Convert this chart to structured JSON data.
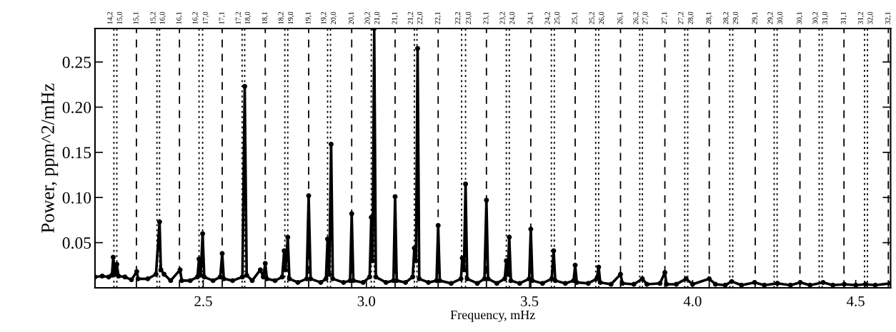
{
  "chart_data": {
    "type": "line",
    "xlabel": "Frequency, mHz",
    "ylabel": "Power, ppm^2/mHz",
    "xlim": [
      2.168,
      4.607
    ],
    "ylim": [
      0,
      0.287
    ],
    "xticks": [
      {
        "value": 2.5,
        "label": "2.5"
      },
      {
        "value": 3.0,
        "label": "3.0"
      },
      {
        "value": 3.5,
        "label": "3.5"
      },
      {
        "value": 4.0,
        "label": "4.0"
      },
      {
        "value": 4.5,
        "label": "4.5"
      }
    ],
    "yticks": [
      {
        "value": 0.05,
        "label": "0.05"
      },
      {
        "value": 0.1,
        "label": "0.10"
      },
      {
        "value": 0.15,
        "label": "0.15"
      },
      {
        "value": 0.2,
        "label": "0.20"
      },
      {
        "value": 0.25,
        "label": "0.25"
      }
    ],
    "grid": false,
    "legend": false,
    "marker": "circle",
    "line_style": "solid",
    "series": [
      {
        "color": "#000000",
        "x": [
          2.168,
          2.19,
          2.21,
          2.22,
          2.224,
          2.229,
          2.235,
          2.24,
          2.26,
          2.28,
          2.296,
          2.3,
          2.33,
          2.355,
          2.366,
          2.37,
          2.38,
          2.4,
          2.429,
          2.434,
          2.46,
          2.482,
          2.487,
          2.492,
          2.498,
          2.503,
          2.53,
          2.552,
          2.558,
          2.563,
          2.59,
          2.62,
          2.627,
          2.633,
          2.65,
          2.675,
          2.684,
          2.69,
          2.695,
          2.72,
          2.742,
          2.748,
          2.752,
          2.759,
          2.764,
          2.79,
          2.817,
          2.823,
          2.829,
          2.86,
          2.876,
          2.881,
          2.886,
          2.892,
          2.897,
          2.93,
          2.95,
          2.955,
          2.96,
          2.99,
          3.01,
          3.015,
          3.019,
          3.024,
          3.029,
          3.06,
          3.083,
          3.088,
          3.093,
          3.12,
          3.142,
          3.147,
          3.152,
          3.157,
          3.162,
          3.19,
          3.215,
          3.22,
          3.225,
          3.26,
          3.29,
          3.294,
          3.299,
          3.304,
          3.309,
          3.34,
          3.362,
          3.368,
          3.373,
          3.4,
          3.424,
          3.429,
          3.433,
          3.438,
          3.443,
          3.47,
          3.499,
          3.504,
          3.509,
          3.54,
          3.568,
          3.574,
          3.579,
          3.61,
          3.635,
          3.64,
          3.645,
          3.68,
          3.706,
          3.712,
          3.717,
          3.75,
          3.779,
          3.785,
          3.82,
          3.846,
          3.86,
          3.9,
          3.915,
          3.92,
          3.95,
          3.98,
          4.0,
          4.051,
          4.07,
          4.1,
          4.12,
          4.15,
          4.19,
          4.22,
          4.26,
          4.3,
          4.33,
          4.36,
          4.4,
          4.43,
          4.465,
          4.5,
          4.53,
          4.56,
          4.607
        ],
        "values": [
          0.012,
          0.013,
          0.012,
          0.014,
          0.034,
          0.015,
          0.026,
          0.013,
          0.012,
          0.009,
          0.018,
          0.01,
          0.01,
          0.015,
          0.073,
          0.02,
          0.015,
          0.008,
          0.02,
          0.008,
          0.008,
          0.012,
          0.032,
          0.014,
          0.06,
          0.012,
          0.008,
          0.012,
          0.038,
          0.01,
          0.008,
          0.012,
          0.223,
          0.014,
          0.008,
          0.02,
          0.012,
          0.027,
          0.01,
          0.008,
          0.012,
          0.041,
          0.02,
          0.056,
          0.01,
          0.006,
          0.01,
          0.102,
          0.01,
          0.006,
          0.01,
          0.054,
          0.015,
          0.159,
          0.01,
          0.006,
          0.008,
          0.082,
          0.008,
          0.006,
          0.012,
          0.078,
          0.03,
          0.287,
          0.012,
          0.006,
          0.008,
          0.101,
          0.008,
          0.006,
          0.012,
          0.044,
          0.03,
          0.265,
          0.01,
          0.006,
          0.008,
          0.069,
          0.008,
          0.005,
          0.01,
          0.033,
          0.02,
          0.115,
          0.01,
          0.005,
          0.01,
          0.097,
          0.01,
          0.005,
          0.01,
          0.03,
          0.015,
          0.056,
          0.008,
          0.005,
          0.01,
          0.065,
          0.008,
          0.005,
          0.01,
          0.041,
          0.008,
          0.005,
          0.008,
          0.025,
          0.006,
          0.005,
          0.01,
          0.023,
          0.006,
          0.004,
          0.015,
          0.005,
          0.004,
          0.01,
          0.004,
          0.005,
          0.017,
          0.004,
          0.004,
          0.01,
          0.004,
          0.01,
          0.004,
          0.003,
          0.007,
          0.003,
          0.006,
          0.003,
          0.005,
          0.003,
          0.006,
          0.003,
          0.006,
          0.003,
          0.004,
          0.003,
          0.004,
          0.003,
          0.005
        ]
      }
    ],
    "annotations": [
      {
        "text": "14,2",
        "x": 2.226,
        "y": 0.287
      },
      {
        "text": "15,0",
        "x": 2.235,
        "y": 0.287
      },
      {
        "text": "15,1",
        "x": 2.295,
        "y": 0.287
      },
      {
        "text": "15,2",
        "x": 2.358,
        "y": 0.287
      },
      {
        "text": "16,0",
        "x": 2.366,
        "y": 0.287
      },
      {
        "text": "16,1",
        "x": 2.427,
        "y": 0.287
      },
      {
        "text": "16,2",
        "x": 2.487,
        "y": 0.287
      },
      {
        "text": "17,0",
        "x": 2.498,
        "y": 0.287
      },
      {
        "text": "17,1",
        "x": 2.558,
        "y": 0.287
      },
      {
        "text": "17,2",
        "x": 2.619,
        "y": 0.287
      },
      {
        "text": "18,0",
        "x": 2.627,
        "y": 0.287
      },
      {
        "text": "18,1",
        "x": 2.69,
        "y": 0.287
      },
      {
        "text": "18,2",
        "x": 2.75,
        "y": 0.287
      },
      {
        "text": "19,0",
        "x": 2.759,
        "y": 0.287
      },
      {
        "text": "19,1",
        "x": 2.823,
        "y": 0.287
      },
      {
        "text": "19,2",
        "x": 2.881,
        "y": 0.287
      },
      {
        "text": "20,0",
        "x": 2.89,
        "y": 0.287
      },
      {
        "text": "20,1",
        "x": 2.955,
        "y": 0.287
      },
      {
        "text": "20,2",
        "x": 3.015,
        "y": 0.287
      },
      {
        "text": "21,0",
        "x": 3.024,
        "y": 0.287
      },
      {
        "text": "21,1",
        "x": 3.088,
        "y": 0.287
      },
      {
        "text": "21,2",
        "x": 3.147,
        "y": 0.287
      },
      {
        "text": "22,0",
        "x": 3.155,
        "y": 0.287
      },
      {
        "text": "22,1",
        "x": 3.22,
        "y": 0.287
      },
      {
        "text": "22,2",
        "x": 3.292,
        "y": 0.287
      },
      {
        "text": "23,0",
        "x": 3.304,
        "y": 0.287
      },
      {
        "text": "23,1",
        "x": 3.368,
        "y": 0.287
      },
      {
        "text": "23,2",
        "x": 3.429,
        "y": 0.287
      },
      {
        "text": "24,0",
        "x": 3.438,
        "y": 0.287
      },
      {
        "text": "24,1",
        "x": 3.504,
        "y": 0.287
      },
      {
        "text": "24,2",
        "x": 3.567,
        "y": 0.287
      },
      {
        "text": "25,0",
        "x": 3.576,
        "y": 0.287
      },
      {
        "text": "25,1",
        "x": 3.64,
        "y": 0.287
      },
      {
        "text": "25,2",
        "x": 3.703,
        "y": 0.287
      },
      {
        "text": "26,0",
        "x": 3.712,
        "y": 0.287
      },
      {
        "text": "26,1",
        "x": 3.779,
        "y": 0.287
      },
      {
        "text": "26,2",
        "x": 3.838,
        "y": 0.287
      },
      {
        "text": "27,0",
        "x": 3.846,
        "y": 0.287
      },
      {
        "text": "27,1",
        "x": 3.915,
        "y": 0.287
      },
      {
        "text": "27,2",
        "x": 3.976,
        "y": 0.287
      },
      {
        "text": "28,0",
        "x": 3.985,
        "y": 0.287
      },
      {
        "text": "28,1",
        "x": 4.051,
        "y": 0.287
      },
      {
        "text": "28,2",
        "x": 4.114,
        "y": 0.287
      },
      {
        "text": "29,0",
        "x": 4.123,
        "y": 0.287
      },
      {
        "text": "29,1",
        "x": 4.192,
        "y": 0.287
      },
      {
        "text": "29,2",
        "x": 4.25,
        "y": 0.287
      },
      {
        "text": "30,0",
        "x": 4.259,
        "y": 0.287
      },
      {
        "text": "30,1",
        "x": 4.329,
        "y": 0.287
      },
      {
        "text": "30,2",
        "x": 4.388,
        "y": 0.287
      },
      {
        "text": "31,0",
        "x": 4.397,
        "y": 0.287
      },
      {
        "text": "31,1",
        "x": 4.464,
        "y": 0.287
      },
      {
        "text": "31,2",
        "x": 4.527,
        "y": 0.287
      },
      {
        "text": "32,0",
        "x": 4.536,
        "y": 0.287
      },
      {
        "text": "32,1",
        "x": 4.6,
        "y": 0.287
      }
    ],
    "ref_lines": [
      {
        "axis": "x",
        "value": 2.226,
        "line_style": "dotted"
      },
      {
        "axis": "x",
        "value": 2.235,
        "line_style": "dotted"
      },
      {
        "axis": "x",
        "value": 2.295,
        "line_style": "dashed"
      },
      {
        "axis": "x",
        "value": 2.358,
        "line_style": "dotted"
      },
      {
        "axis": "x",
        "value": 2.366,
        "line_style": "dotted"
      },
      {
        "axis": "x",
        "value": 2.427,
        "line_style": "dashed"
      },
      {
        "axis": "x",
        "value": 2.487,
        "line_style": "dotted"
      },
      {
        "axis": "x",
        "value": 2.498,
        "line_style": "dotted"
      },
      {
        "axis": "x",
        "value": 2.558,
        "line_style": "dashed"
      },
      {
        "axis": "x",
        "value": 2.619,
        "line_style": "dotted"
      },
      {
        "axis": "x",
        "value": 2.627,
        "line_style": "dotted"
      },
      {
        "axis": "x",
        "value": 2.69,
        "line_style": "dashed"
      },
      {
        "axis": "x",
        "value": 2.75,
        "line_style": "dotted"
      },
      {
        "axis": "x",
        "value": 2.759,
        "line_style": "dotted"
      },
      {
        "axis": "x",
        "value": 2.823,
        "line_style": "dashed"
      },
      {
        "axis": "x",
        "value": 2.881,
        "line_style": "dotted"
      },
      {
        "axis": "x",
        "value": 2.89,
        "line_style": "dotted"
      },
      {
        "axis": "x",
        "value": 2.955,
        "line_style": "dashed"
      },
      {
        "axis": "x",
        "value": 3.015,
        "line_style": "dotted"
      },
      {
        "axis": "x",
        "value": 3.024,
        "line_style": "dotted"
      },
      {
        "axis": "x",
        "value": 3.088,
        "line_style": "dashed"
      },
      {
        "axis": "x",
        "value": 3.147,
        "line_style": "dotted"
      },
      {
        "axis": "x",
        "value": 3.155,
        "line_style": "dotted"
      },
      {
        "axis": "x",
        "value": 3.22,
        "line_style": "dashed"
      },
      {
        "axis": "x",
        "value": 3.292,
        "line_style": "dotted"
      },
      {
        "axis": "x",
        "value": 3.304,
        "line_style": "dotted"
      },
      {
        "axis": "x",
        "value": 3.368,
        "line_style": "dashed"
      },
      {
        "axis": "x",
        "value": 3.429,
        "line_style": "dotted"
      },
      {
        "axis": "x",
        "value": 3.438,
        "line_style": "dotted"
      },
      {
        "axis": "x",
        "value": 3.504,
        "line_style": "dashed"
      },
      {
        "axis": "x",
        "value": 3.567,
        "line_style": "dotted"
      },
      {
        "axis": "x",
        "value": 3.576,
        "line_style": "dotted"
      },
      {
        "axis": "x",
        "value": 3.64,
        "line_style": "dashed"
      },
      {
        "axis": "x",
        "value": 3.703,
        "line_style": "dotted"
      },
      {
        "axis": "x",
        "value": 3.712,
        "line_style": "dotted"
      },
      {
        "axis": "x",
        "value": 3.779,
        "line_style": "dashed"
      },
      {
        "axis": "x",
        "value": 3.838,
        "line_style": "dotted"
      },
      {
        "axis": "x",
        "value": 3.846,
        "line_style": "dotted"
      },
      {
        "axis": "x",
        "value": 3.915,
        "line_style": "dashed"
      },
      {
        "axis": "x",
        "value": 3.976,
        "line_style": "dotted"
      },
      {
        "axis": "x",
        "value": 3.985,
        "line_style": "dotted"
      },
      {
        "axis": "x",
        "value": 4.051,
        "line_style": "dashed"
      },
      {
        "axis": "x",
        "value": 4.114,
        "line_style": "dotted"
      },
      {
        "axis": "x",
        "value": 4.123,
        "line_style": "dotted"
      },
      {
        "axis": "x",
        "value": 4.192,
        "line_style": "dashed"
      },
      {
        "axis": "x",
        "value": 4.25,
        "line_style": "dotted"
      },
      {
        "axis": "x",
        "value": 4.259,
        "line_style": "dotted"
      },
      {
        "axis": "x",
        "value": 4.329,
        "line_style": "dashed"
      },
      {
        "axis": "x",
        "value": 4.388,
        "line_style": "dotted"
      },
      {
        "axis": "x",
        "value": 4.397,
        "line_style": "dotted"
      },
      {
        "axis": "x",
        "value": 4.464,
        "line_style": "dashed"
      },
      {
        "axis": "x",
        "value": 4.527,
        "line_style": "dotted"
      },
      {
        "axis": "x",
        "value": 4.536,
        "line_style": "dotted"
      },
      {
        "axis": "x",
        "value": 4.6,
        "line_style": "dashed"
      }
    ]
  }
}
